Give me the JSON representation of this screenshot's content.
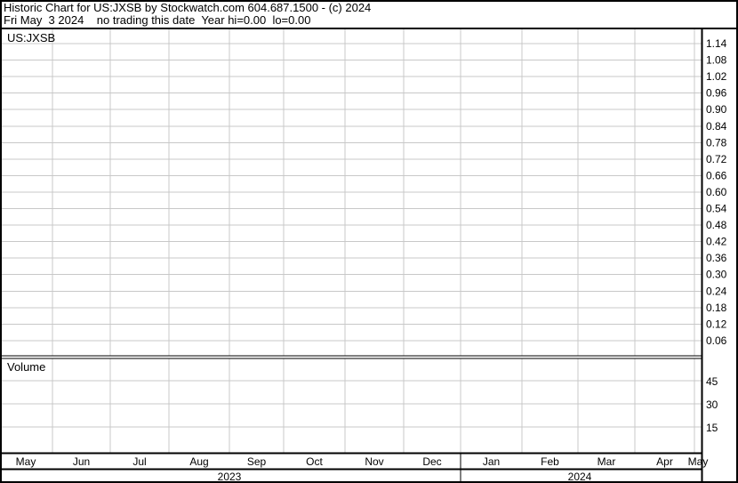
{
  "header": {
    "line1": "Historic Chart for US:JXSB by Stockwatch.com 604.687.1500 - (c) 2024",
    "line2": "Fri May  3 2024    no trading this date  Year hi=0.00  lo=0.00"
  },
  "chart_data": [
    {
      "type": "line",
      "title": "US:JXSB",
      "series": [],
      "y_ticks": [
        "1.14",
        "1.08",
        "1.02",
        "0.96",
        "0.90",
        "0.84",
        "0.78",
        "0.72",
        "0.66",
        "0.60",
        "0.54",
        "0.48",
        "0.42",
        "0.36",
        "0.30",
        "0.24",
        "0.18",
        "0.12",
        "0.06"
      ],
      "ylim": [
        0,
        1.17
      ],
      "x_ticks": [
        "May",
        "Jun",
        "Jul",
        "Aug",
        "Sep",
        "Oct",
        "Nov",
        "Dec",
        "Jan",
        "Feb",
        "Mar",
        "Apr",
        "May"
      ],
      "x_years": [
        "2023",
        "2024"
      ],
      "grid": true,
      "y_axis_side": "right"
    },
    {
      "type": "bar",
      "title": "Volume",
      "series": [],
      "y_ticks": [
        "45",
        "30",
        "15"
      ],
      "ylim": [
        0,
        60
      ],
      "grid": true
    }
  ],
  "colors": {
    "grid": "#c8c8c8",
    "border": "#000000",
    "background": "#ffffff"
  }
}
